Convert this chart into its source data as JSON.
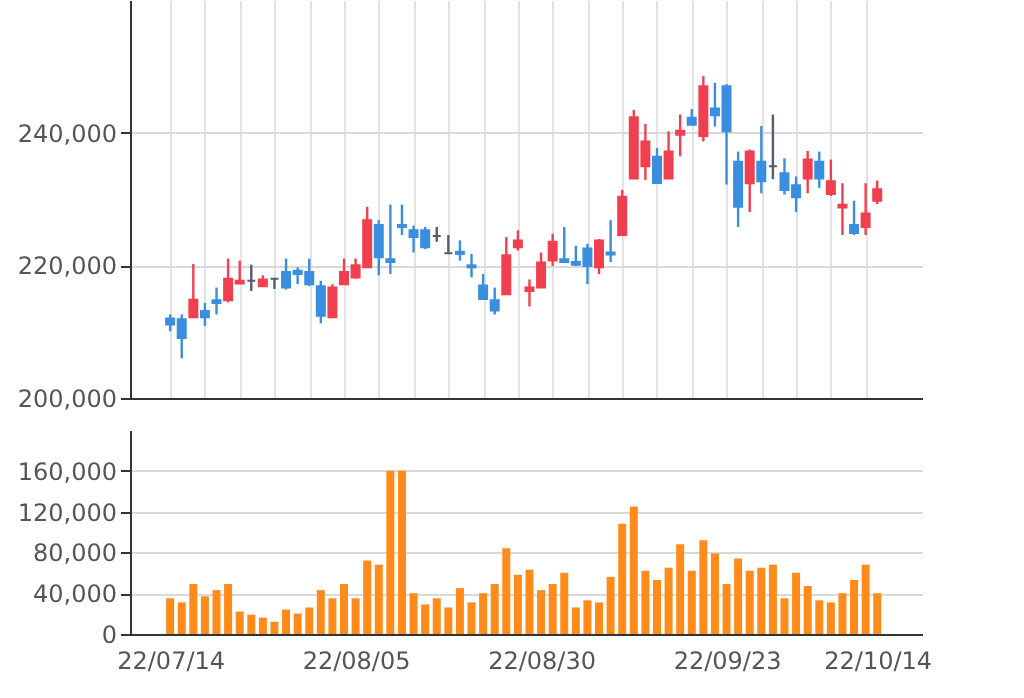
{
  "chart_data": [
    {
      "type": "candlestick",
      "categories": [
        null,
        null,
        null,
        null,
        null,
        null,
        null,
        null,
        null,
        null,
        null,
        null,
        null,
        null,
        null,
        null,
        null,
        null,
        null,
        null,
        null,
        null,
        null,
        null,
        null,
        null,
        null,
        null,
        null,
        null,
        null,
        null,
        null,
        null,
        null,
        null,
        null,
        null,
        null,
        null,
        null,
        null,
        null,
        null,
        null,
        null,
        null,
        null,
        null,
        null,
        null,
        null,
        null,
        null,
        null,
        null,
        null,
        null,
        null,
        null,
        null,
        null
      ],
      "ohlc": [
        [
          211980,
          212590,
          210050,
          211070
        ],
        [
          211880,
          212590,
          205990,
          209040
        ],
        [
          212180,
          220200,
          212180,
          214820
        ],
        [
          213100,
          214320,
          210870,
          212180
        ],
        [
          214720,
          216650,
          212590,
          214320
        ],
        [
          214720,
          221020,
          214420,
          217970
        ],
        [
          217260,
          220710,
          217260,
          217660
        ],
        [
          217660,
          220100,
          216140,
          217660
        ],
        [
          216850,
          218480,
          216850,
          217870
        ],
        [
          217970,
          218070,
          216450,
          217970
        ],
        [
          218990,
          221020,
          216350,
          216650
        ],
        [
          219190,
          219700,
          217160,
          218680
        ],
        [
          218990,
          221020,
          216860,
          217160
        ],
        [
          216860,
          217660,
          211270,
          212390
        ],
        [
          212180,
          217160,
          212180,
          216650
        ],
        [
          217160,
          221020,
          217160,
          218990
        ],
        [
          218170,
          221020,
          217970,
          220000
        ],
        [
          219700,
          228830,
          219700,
          226800
        ],
        [
          226090,
          226800,
          218480,
          221220
        ],
        [
          220910,
          229140,
          218680,
          220510
        ],
        [
          226090,
          229140,
          224570,
          225790
        ],
        [
          225280,
          225990,
          221930,
          224260
        ],
        [
          225280,
          225790,
          222440,
          222740
        ],
        [
          224420,
          225790,
          223550,
          224420
        ],
        [
          221830,
          224570,
          221730,
          221830
        ],
        [
          222030,
          223760,
          220710,
          221730
        ],
        [
          220000,
          221730,
          218170,
          219700
        ],
        [
          216960,
          218680,
          214930,
          214930
        ],
        [
          214720,
          216650,
          212590,
          213200
        ],
        [
          215640,
          224260,
          215640,
          221520
        ],
        [
          222740,
          225280,
          222230,
          223760
        ],
        [
          216140,
          217870,
          213810,
          216650
        ],
        [
          216650,
          221930,
          216650,
          220410
        ],
        [
          220710,
          224770,
          219900,
          223550
        ],
        [
          220910,
          225790,
          220510,
          220510
        ],
        [
          220510,
          222940,
          219900,
          220100
        ],
        [
          222540,
          223250,
          217160,
          219900
        ],
        [
          219700,
          223960,
          218680,
          223760
        ],
        [
          221930,
          226800,
          220510,
          221620
        ],
        [
          224570,
          231370,
          224570,
          230350
        ],
        [
          233090,
          243440,
          233090,
          242330
        ],
        [
          234920,
          241320,
          232890,
          238680
        ],
        [
          236380,
          237700,
          232430,
          232430
        ],
        [
          233090,
          240200,
          233090,
          237150
        ],
        [
          239690,
          242740,
          236440,
          240300
        ],
        [
          242230,
          243550,
          241210,
          241210
        ],
        [
          239490,
          248520,
          238680,
          247000
        ],
        [
          243650,
          247510,
          240910,
          242640
        ],
        [
          246990,
          247310,
          232180,
          240200
        ],
        [
          235630,
          237150,
          225790,
          228830
        ],
        [
          232380,
          237460,
          228020,
          237150
        ],
        [
          235630,
          241020,
          230860,
          232690
        ],
        [
          234920,
          242740,
          232990,
          234920
        ],
        [
          233900,
          236130,
          230660,
          231370
        ],
        [
          232080,
          233400,
          228020,
          230250
        ],
        [
          233090,
          237250,
          230860,
          235940
        ],
        [
          235630,
          237150,
          231680,
          233090
        ],
        [
          230760,
          235940,
          230450,
          232690
        ],
        [
          228730,
          232380,
          224570,
          229140
        ],
        [
          226090,
          229750,
          224570,
          224870
        ],
        [
          225790,
          232380,
          224570,
          227820
        ],
        [
          229750,
          232790,
          229240,
          231470
        ]
      ],
      "colors": [
        "#3a8ee0",
        "#3a8ee0",
        "#f04050",
        "#3a8ee0",
        "#3a8ee0",
        "#f04050",
        "#f04050",
        "#555e6a",
        "#f04050",
        "#555e6a",
        "#3a8ee0",
        "#3a8ee0",
        "#3a8ee0",
        "#3a8ee0",
        "#f04050",
        "#f04050",
        "#f04050",
        "#f04050",
        "#3a8ee0",
        "#3a8ee0",
        "#3a8ee0",
        "#3a8ee0",
        "#3a8ee0",
        "#555e6a",
        "#555e6a",
        "#3a8ee0",
        "#3a8ee0",
        "#3a8ee0",
        "#3a8ee0",
        "#f04050",
        "#f04050",
        "#f04050",
        "#f04050",
        "#f04050",
        "#3a8ee0",
        "#3a8ee0",
        "#3a8ee0",
        "#f04050",
        "#3a8ee0",
        "#f04050",
        "#f04050",
        "#f04050",
        "#3a8ee0",
        "#f04050",
        "#f04050",
        "#3a8ee0",
        "#f04050",
        "#3a8ee0",
        "#3a8ee0",
        "#3a8ee0",
        "#f04050",
        "#3a8ee0",
        "#555e6a",
        "#3a8ee0",
        "#3a8ee0",
        "#f04050",
        "#3a8ee0",
        "#f04050",
        "#f04050",
        "#3a8ee0",
        "#f04050",
        "#f04050"
      ],
      "ylim": [
        200000,
        260000
      ],
      "yticks": [
        {
          "value": 200000,
          "label": "200,000"
        },
        {
          "value": 220000,
          "label": "220,000"
        },
        {
          "value": 240000,
          "label": "240,000"
        }
      ],
      "grid": true,
      "tick_labels": "y"
    },
    {
      "type": "bar",
      "categories": [
        "22/07/14",
        null,
        null,
        null,
        null,
        null,
        null,
        null,
        null,
        null,
        null,
        null,
        null,
        null,
        null,
        null,
        "22/08/05",
        null,
        null,
        null,
        null,
        null,
        null,
        null,
        null,
        null,
        null,
        null,
        null,
        null,
        null,
        null,
        "22/08/30",
        null,
        null,
        null,
        null,
        null,
        null,
        null,
        null,
        null,
        null,
        null,
        null,
        null,
        null,
        null,
        "22/09/23",
        null,
        null,
        null,
        null,
        null,
        null,
        null,
        null,
        null,
        null,
        null,
        null,
        "22/10/14"
      ],
      "values": [
        35000,
        31000,
        49000,
        37000,
        43000,
        49000,
        22000,
        19000,
        16000,
        12000,
        24000,
        20000,
        26000,
        43000,
        35000,
        49000,
        35000,
        72000,
        68000,
        160000,
        160000,
        40000,
        29000,
        35000,
        26000,
        45000,
        31000,
        40000,
        49000,
        84000,
        58000,
        63000,
        43000,
        49000,
        60000,
        26000,
        33000,
        31000,
        56000,
        108000,
        125000,
        62000,
        53000,
        65000,
        88000,
        62000,
        92000,
        79000,
        49000,
        74000,
        62000,
        65000,
        68000,
        35000,
        60000,
        47000,
        33000,
        31000,
        40000,
        53000,
        68000,
        40000
      ],
      "color": "#ff8c1a",
      "ylim": [
        0,
        200000
      ],
      "yticks": [
        0,
        {
          "value": 40000,
          "label": "40,000"
        },
        {
          "value": 80000,
          "label": "80,000"
        },
        {
          "value": 120000,
          "label": "120,000"
        },
        {
          "value": 160000,
          "label": "160,000"
        }
      ],
      "grid": "y"
    }
  ]
}
